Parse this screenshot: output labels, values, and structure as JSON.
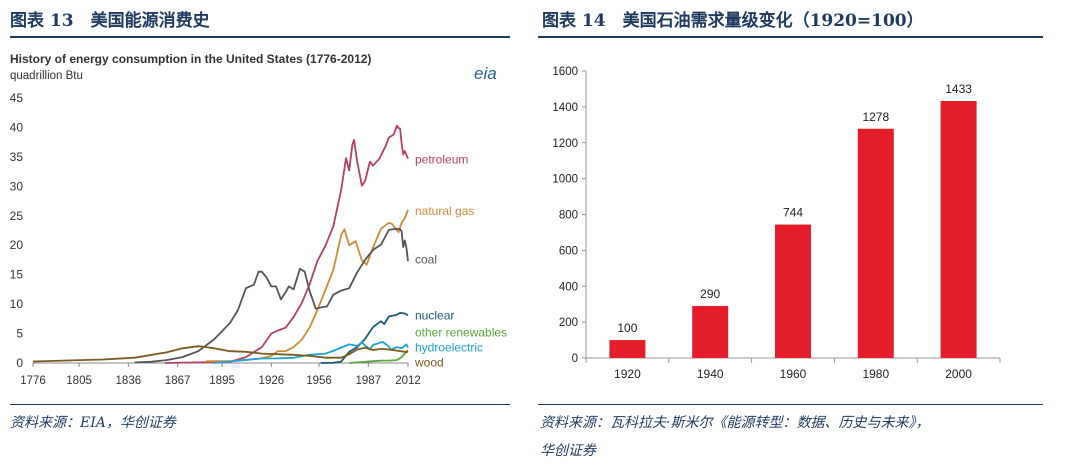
{
  "left": {
    "figure_title": "图表 13　美国能源消费史",
    "source": "资料来源：EIA，华创证券",
    "logo_text": "eia"
  },
  "right": {
    "figure_title": "图表 14　美国石油需求量级变化（1920=100）",
    "source_line1": "资料来源：瓦科拉夫·斯米尔《能源转型：数据、历史与未来》，",
    "source_line2": "华创证券"
  },
  "chart_data": [
    {
      "type": "line",
      "title": "History of energy consumption in the United States (1776-2012)",
      "ylabel": "quadrillion Btu",
      "xlabel": "",
      "xlim": [
        1776,
        2012
      ],
      "ylim": [
        0,
        45
      ],
      "x_ticks": [
        1776,
        1805,
        1836,
        1867,
        1895,
        1926,
        1956,
        1987,
        2012
      ],
      "y_ticks": [
        0,
        5,
        10,
        15,
        20,
        25,
        30,
        35,
        40,
        45
      ],
      "grid": false,
      "series": [
        {
          "name": "petroleum",
          "color": "#b5405f",
          "points": [
            [
              1859,
              0
            ],
            [
              1880,
              0.1
            ],
            [
              1900,
              0.2
            ],
            [
              1910,
              1
            ],
            [
              1920,
              2.7
            ],
            [
              1926,
              5
            ],
            [
              1930,
              5.5
            ],
            [
              1935,
              6
            ],
            [
              1940,
              7.8
            ],
            [
              1945,
              10.1
            ],
            [
              1950,
              13.3
            ],
            [
              1955,
              17.3
            ],
            [
              1960,
              19.9
            ],
            [
              1965,
              23.2
            ],
            [
              1970,
              29.5
            ],
            [
              1973,
              34.8
            ],
            [
              1975,
              32.7
            ],
            [
              1977,
              37.1
            ],
            [
              1978,
              37.9
            ],
            [
              1980,
              34.2
            ],
            [
              1983,
              30.1
            ],
            [
              1985,
              30.9
            ],
            [
              1988,
              34.2
            ],
            [
              1990,
              33.5
            ],
            [
              1994,
              34.7
            ],
            [
              1996,
              35.8
            ],
            [
              1998,
              36.9
            ],
            [
              2000,
              38.3
            ],
            [
              2003,
              38.8
            ],
            [
              2005,
              40.3
            ],
            [
              2006,
              39.9
            ],
            [
              2007,
              39.8
            ],
            [
              2008,
              37.3
            ],
            [
              2009,
              35.4
            ],
            [
              2010,
              36
            ],
            [
              2012,
              34.7
            ]
          ]
        },
        {
          "name": "natural gas",
          "color": "#d08a3a",
          "points": [
            [
              1885,
              0.3
            ],
            [
              1900,
              0.3
            ],
            [
              1910,
              0.5
            ],
            [
              1920,
              0.8
            ],
            [
              1926,
              1.2
            ],
            [
              1930,
              2
            ],
            [
              1935,
              2
            ],
            [
              1940,
              2.7
            ],
            [
              1945,
              3.9
            ],
            [
              1950,
              6
            ],
            [
              1955,
              9
            ],
            [
              1960,
              12.4
            ],
            [
              1965,
              15.8
            ],
            [
              1970,
              21.8
            ],
            [
              1972,
              22.7
            ],
            [
              1975,
              20
            ],
            [
              1979,
              20.7
            ],
            [
              1983,
              17.4
            ],
            [
              1986,
              16.7
            ],
            [
              1990,
              19.6
            ],
            [
              1995,
              22.8
            ],
            [
              2000,
              23.8
            ],
            [
              2002,
              23.6
            ],
            [
              2006,
              22.2
            ],
            [
              2008,
              23.8
            ],
            [
              2010,
              24.6
            ],
            [
              2012,
              26
            ]
          ]
        },
        {
          "name": "coal",
          "color": "#555555",
          "points": [
            [
              1840,
              0.1
            ],
            [
              1850,
              0.2
            ],
            [
              1860,
              0.5
            ],
            [
              1870,
              1
            ],
            [
              1880,
              2
            ],
            [
              1890,
              4
            ],
            [
              1900,
              6.8
            ],
            [
              1905,
              9
            ],
            [
              1910,
              12.7
            ],
            [
              1915,
              13.3
            ],
            [
              1918,
              15.5
            ],
            [
              1920,
              15.5
            ],
            [
              1923,
              14.5
            ],
            [
              1926,
              13
            ],
            [
              1929,
              13
            ],
            [
              1932,
              10.8
            ],
            [
              1935,
              12
            ],
            [
              1937,
              13
            ],
            [
              1940,
              12.5
            ],
            [
              1944,
              16
            ],
            [
              1947,
              15.5
            ],
            [
              1950,
              12.3
            ],
            [
              1954,
              9.2
            ],
            [
              1958,
              9.5
            ],
            [
              1961,
              9.6
            ],
            [
              1965,
              11.6
            ],
            [
              1970,
              12.3
            ],
            [
              1975,
              12.7
            ],
            [
              1980,
              15.4
            ],
            [
              1985,
              17.5
            ],
            [
              1990,
              19.2
            ],
            [
              1995,
              20.1
            ],
            [
              2000,
              22.6
            ],
            [
              2005,
              22.8
            ],
            [
              2007,
              22.7
            ],
            [
              2008,
              22.4
            ],
            [
              2009,
              19.7
            ],
            [
              2010,
              20.8
            ],
            [
              2011,
              19.6
            ],
            [
              2012,
              17.3
            ]
          ]
        },
        {
          "name": "nuclear",
          "color": "#1f5a7a",
          "points": [
            [
              1957,
              0
            ],
            [
              1965,
              0.04
            ],
            [
              1970,
              0.24
            ],
            [
              1975,
              1.9
            ],
            [
              1980,
              2.7
            ],
            [
              1985,
              4.1
            ],
            [
              1990,
              6.1
            ],
            [
              1995,
              7.1
            ],
            [
              1997,
              6.6
            ],
            [
              2000,
              7.9
            ],
            [
              2005,
              8.2
            ],
            [
              2007,
              8.5
            ],
            [
              2010,
              8.4
            ],
            [
              2012,
              8.1
            ]
          ]
        },
        {
          "name": "other renewables",
          "color": "#5aa83a",
          "points": [
            [
              1975,
              0
            ],
            [
              1985,
              0.2
            ],
            [
              1990,
              0.3
            ],
            [
              1995,
              0.4
            ],
            [
              2000,
              0.4
            ],
            [
              2005,
              0.5
            ],
            [
              2008,
              1
            ],
            [
              2010,
              1.6
            ],
            [
              2012,
              2.2
            ]
          ]
        },
        {
          "name": "hydroelectric",
          "color": "#1ba3d6",
          "points": [
            [
              1890,
              0
            ],
            [
              1900,
              0.25
            ],
            [
              1910,
              0.54
            ],
            [
              1920,
              0.76
            ],
            [
              1930,
              0.78
            ],
            [
              1940,
              0.88
            ],
            [
              1950,
              1.4
            ],
            [
              1960,
              1.6
            ],
            [
              1965,
              2.05
            ],
            [
              1970,
              2.63
            ],
            [
              1975,
              3.15
            ],
            [
              1980,
              2.9
            ],
            [
              1983,
              3.5
            ],
            [
              1985,
              2.97
            ],
            [
              1988,
              2.33
            ],
            [
              1990,
              3.05
            ],
            [
              1996,
              3.59
            ],
            [
              2000,
              2.81
            ],
            [
              2001,
              2.24
            ],
            [
              2005,
              2.7
            ],
            [
              2008,
              2.5
            ],
            [
              2011,
              3.17
            ],
            [
              2012,
              2.63
            ]
          ]
        },
        {
          "name": "wood",
          "color": "#7a5a1e",
          "points": [
            [
              1776,
              0.25
            ],
            [
              1800,
              0.45
            ],
            [
              1820,
              0.6
            ],
            [
              1840,
              0.9
            ],
            [
              1860,
              1.8
            ],
            [
              1870,
              2.5
            ],
            [
              1880,
              2.85
            ],
            [
              1885,
              2.7
            ],
            [
              1890,
              2.5
            ],
            [
              1900,
              2.0
            ],
            [
              1910,
              1.9
            ],
            [
              1920,
              1.6
            ],
            [
              1930,
              1.5
            ],
            [
              1940,
              1.4
            ],
            [
              1950,
              1.2
            ],
            [
              1960,
              0.9
            ],
            [
              1970,
              0.9
            ],
            [
              1975,
              1.5
            ],
            [
              1980,
              2.3
            ],
            [
              1985,
              2.6
            ],
            [
              1990,
              2.2
            ],
            [
              1995,
              2.4
            ],
            [
              2000,
              2.3
            ],
            [
              2005,
              2.1
            ],
            [
              2010,
              1.9
            ],
            [
              2012,
              1.9
            ]
          ]
        }
      ]
    },
    {
      "type": "bar",
      "title": "",
      "xlabel": "",
      "ylabel": "",
      "categories": [
        "1920",
        "1940",
        "1960",
        "1980",
        "2000"
      ],
      "values": [
        100,
        290,
        744,
        1278,
        1433
      ],
      "ylim": [
        0,
        1600
      ],
      "y_ticks": [
        0,
        200,
        400,
        600,
        800,
        1000,
        1200,
        1400,
        1600
      ],
      "bar_color": "#e31d2a",
      "grid": false
    }
  ]
}
